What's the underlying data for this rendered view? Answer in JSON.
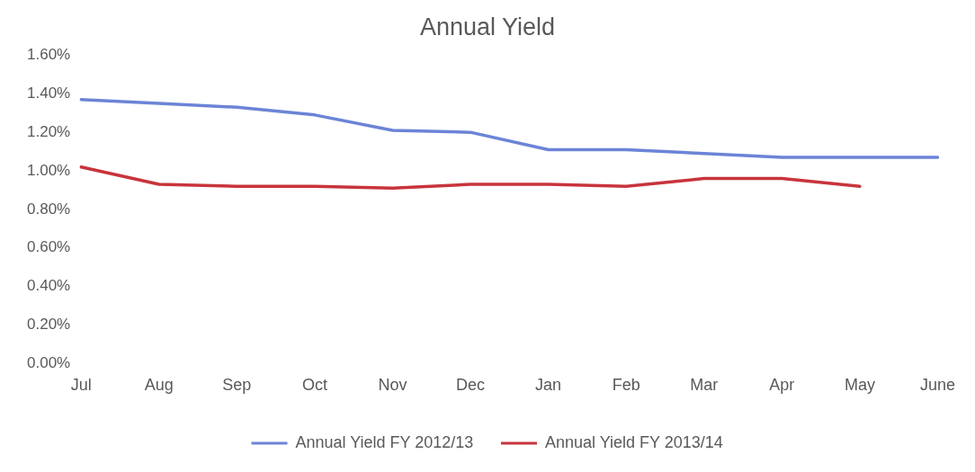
{
  "chart_data": {
    "type": "line",
    "title": "Annual Yield",
    "categories": [
      "Jul",
      "Aug",
      "Sep",
      "Oct",
      "Nov",
      "Dec",
      "Jan",
      "Feb",
      "Mar",
      "Apr",
      "May",
      "June"
    ],
    "series": [
      {
        "name": "Annual Yield FY 2012/13",
        "color": "#6b84d6",
        "values": [
          1.37,
          1.35,
          1.33,
          1.29,
          1.21,
          1.2,
          1.11,
          1.11,
          1.09,
          1.07,
          1.07,
          1.07
        ]
      },
      {
        "name": "Annual Yield FY 2013/14",
        "color": "#c8343c",
        "values": [
          1.02,
          0.93,
          0.92,
          0.92,
          0.91,
          0.93,
          0.93,
          0.92,
          0.96,
          0.96,
          0.92,
          null
        ]
      }
    ],
    "ylim": [
      0,
      1.6
    ],
    "yticks": [
      {
        "value": 0,
        "label": "0.00%"
      },
      {
        "value": 0.2,
        "label": "0.20%"
      },
      {
        "value": 0.4,
        "label": "0.40%"
      },
      {
        "value": 0.6,
        "label": "0.60%"
      },
      {
        "value": 0.8,
        "label": "0.80%"
      },
      {
        "value": 1,
        "label": "1.00%"
      },
      {
        "value": 1.2,
        "label": "1.20%"
      },
      {
        "value": 1.4,
        "label": "1.40%"
      },
      {
        "value": 1.6,
        "label": "1.60%"
      }
    ],
    "grid": false,
    "legend": "bottom",
    "marker": "none",
    "line_style": "solid"
  }
}
